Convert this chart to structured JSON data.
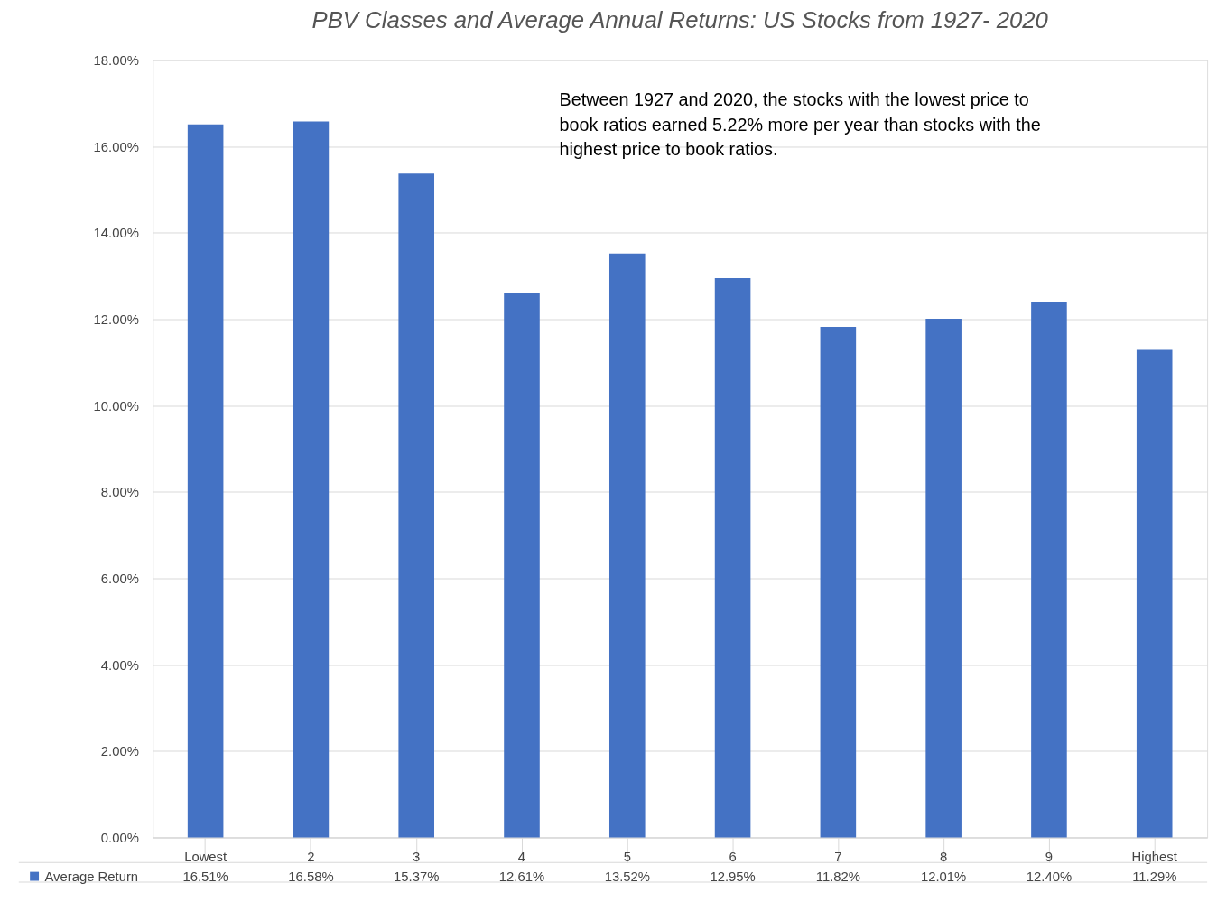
{
  "chart_data": {
    "type": "bar",
    "title": "PBV Classes and Average Annual Returns: US Stocks from 1927- 2020",
    "categories": [
      "Lowest",
      "2",
      "3",
      "4",
      "5",
      "6",
      "7",
      "8",
      "9",
      "Highest"
    ],
    "series": [
      {
        "name": "Average Return",
        "color": "#4472c4",
        "values": [
          16.51,
          16.58,
          15.37,
          12.61,
          13.52,
          12.95,
          11.82,
          12.01,
          12.4,
          11.29
        ],
        "value_labels": [
          "16.51%",
          "16.58%",
          "15.37%",
          "12.61%",
          "13.52%",
          "12.95%",
          "11.82%",
          "12.01%",
          "12.40%",
          "11.29%"
        ]
      }
    ],
    "ylim": [
      0,
      18
    ],
    "yticks": [
      {
        "value": 0,
        "label": "0.00%"
      },
      {
        "value": 2,
        "label": "2.00%"
      },
      {
        "value": 4,
        "label": "4.00%"
      },
      {
        "value": 6,
        "label": "6.00%"
      },
      {
        "value": 8,
        "label": "8.00%"
      },
      {
        "value": 10,
        "label": "10.00%"
      },
      {
        "value": 12,
        "label": "12.00%"
      },
      {
        "value": 14,
        "label": "14.00%"
      },
      {
        "value": 16,
        "label": "16.00%"
      },
      {
        "value": 18,
        "label": "18.00%"
      }
    ],
    "grid": "y",
    "legend": "bottom left",
    "annotations": [
      "Between 1927 and 2020, the stocks with the lowest price to book ratios earned 5.22% more per year than stocks with the highest price to book ratios."
    ]
  }
}
